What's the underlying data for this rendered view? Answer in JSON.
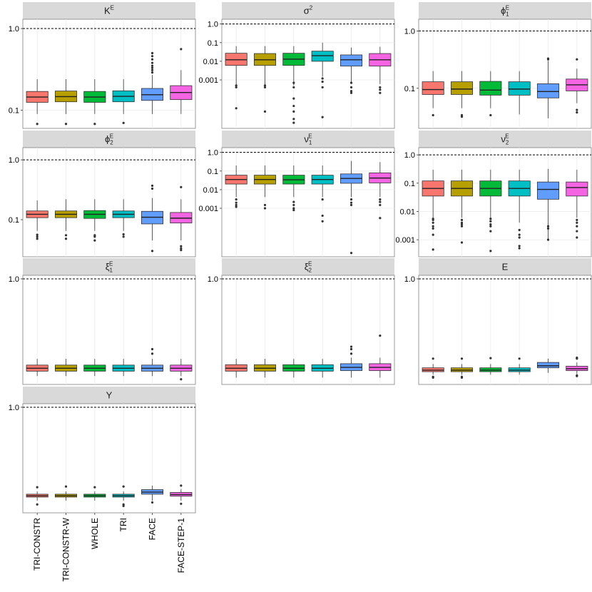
{
  "chart_data": {
    "type": "box",
    "yscale": "log10",
    "categories": [
      "TRI-CONSTR",
      "TRI-CONSTR-W",
      "WHOLE",
      "TRI",
      "FACE",
      "FACE-STEP-1"
    ],
    "colors": [
      "#F8766D",
      "#B79F00",
      "#00BA38",
      "#00BFC4",
      "#619CFF",
      "#F564E3"
    ],
    "reference_line": 1.0,
    "panels": [
      {
        "title": "K",
        "title_sup": "E",
        "title_sub": "",
        "ylim": [
          0.06,
          1.3
        ],
        "yticks": [
          1.0,
          0.1
        ],
        "ytick_labels": [
          "1.0",
          "0.1"
        ],
        "boxes": [
          {
            "min": 0.09,
            "q1": 0.125,
            "median": 0.145,
            "q3": 0.17,
            "max": 0.24,
            "outliers": [
              0.068
            ]
          },
          {
            "min": 0.09,
            "q1": 0.127,
            "median": 0.147,
            "q3": 0.172,
            "max": 0.24,
            "outliers": [
              0.068
            ]
          },
          {
            "min": 0.09,
            "q1": 0.125,
            "median": 0.145,
            "q3": 0.17,
            "max": 0.24,
            "outliers": [
              0.068
            ]
          },
          {
            "min": 0.09,
            "q1": 0.127,
            "median": 0.148,
            "q3": 0.173,
            "max": 0.24,
            "outliers": [
              0.07
            ]
          },
          {
            "min": 0.09,
            "q1": 0.132,
            "median": 0.155,
            "q3": 0.185,
            "max": 0.27,
            "outliers": [
              0.29,
              0.31,
              0.33,
              0.35,
              0.38,
              0.42,
              0.46,
              0.5
            ]
          },
          {
            "min": 0.09,
            "q1": 0.135,
            "median": 0.165,
            "q3": 0.2,
            "max": 0.31,
            "outliers": [
              0.56
            ]
          }
        ]
      },
      {
        "title": "σ",
        "title_sup": "2",
        "title_sub": "",
        "ylim": [
          2.5e-06,
          1.8
        ],
        "yticks": [
          1.0,
          0.1,
          0.01,
          0.001
        ],
        "ytick_labels": [
          "1.0",
          "0.1",
          "0.01",
          "0.001"
        ],
        "boxes": [
          {
            "min": 0.0005,
            "q1": 0.006,
            "median": 0.012,
            "q3": 0.027,
            "max": 0.065,
            "outliers": [
              0.0005,
              0.0004,
              3e-05
            ]
          },
          {
            "min": 0.0005,
            "q1": 0.006,
            "median": 0.012,
            "q3": 0.026,
            "max": 0.065,
            "outliers": [
              0.0005,
              0.0004,
              2e-05
            ]
          },
          {
            "min": 0.0005,
            "q1": 0.006,
            "median": 0.013,
            "q3": 0.027,
            "max": 0.065,
            "outliers": [
              0.0007,
              0.0004,
              0.0001,
              4e-05,
              2e-05,
              8e-06,
              5e-06
            ]
          },
          {
            "min": 0.0015,
            "q1": 0.01,
            "median": 0.02,
            "q3": 0.035,
            "max": 0.1,
            "outliers": [
              0.0012,
              0.0008,
              0.0004,
              1e-05
            ]
          },
          {
            "min": 0.0008,
            "q1": 0.0055,
            "median": 0.012,
            "q3": 0.022,
            "max": 0.055,
            "outliers": [
              0.0007,
              0.0004,
              0.00025,
              0.0002
            ]
          },
          {
            "min": 0.0006,
            "q1": 0.0055,
            "median": 0.012,
            "q3": 0.026,
            "max": 0.06,
            "outliers": [
              0.0004,
              0.0003,
              0.0002
            ]
          }
        ]
      },
      {
        "title": "ϕ",
        "title_sup": "E",
        "title_sub": "1",
        "ylim": [
          0.02,
          1.6
        ],
        "yticks": [
          1.0,
          0.1
        ],
        "ytick_labels": [
          "1.0",
          "0.1"
        ],
        "boxes": [
          {
            "min": 0.045,
            "q1": 0.078,
            "median": 0.095,
            "q3": 0.13,
            "max": 0.2,
            "outliers": [
              0.034
            ]
          },
          {
            "min": 0.045,
            "q1": 0.078,
            "median": 0.097,
            "q3": 0.13,
            "max": 0.2,
            "outliers": [
              0.034,
              0.032
            ]
          },
          {
            "min": 0.045,
            "q1": 0.076,
            "median": 0.093,
            "q3": 0.132,
            "max": 0.2,
            "outliers": [
              0.034
            ]
          },
          {
            "min": 0.035,
            "q1": 0.076,
            "median": 0.097,
            "q3": 0.13,
            "max": 0.2,
            "outliers": []
          },
          {
            "min": 0.03,
            "q1": 0.068,
            "median": 0.088,
            "q3": 0.12,
            "max": 0.3,
            "outliers": [
              0.32,
              0.33
            ]
          },
          {
            "min": 0.055,
            "q1": 0.09,
            "median": 0.115,
            "q3": 0.145,
            "max": 0.22,
            "outliers": [
              0.042,
              0.038,
              0.32
            ]
          }
        ]
      },
      {
        "title": "ϕ",
        "title_sup": "E",
        "title_sub": "2",
        "ylim": [
          0.024,
          1.6
        ],
        "yticks": [
          1.0,
          0.1
        ],
        "ytick_labels": [
          "1.0",
          "0.1"
        ],
        "boxes": [
          {
            "min": 0.065,
            "q1": 0.108,
            "median": 0.123,
            "q3": 0.14,
            "max": 0.21,
            "outliers": [
              0.056,
              0.052,
              0.048
            ]
          },
          {
            "min": 0.065,
            "q1": 0.108,
            "median": 0.123,
            "q3": 0.14,
            "max": 0.22,
            "outliers": [
              0.055,
              0.048
            ]
          },
          {
            "min": 0.065,
            "q1": 0.105,
            "median": 0.123,
            "q3": 0.142,
            "max": 0.22,
            "outliers": [
              0.055,
              0.052,
              0.045
            ]
          },
          {
            "min": 0.065,
            "q1": 0.108,
            "median": 0.123,
            "q3": 0.14,
            "max": 0.22,
            "outliers": [
              0.057,
              0.052
            ]
          },
          {
            "min": 0.045,
            "q1": 0.085,
            "median": 0.11,
            "q3": 0.138,
            "max": 0.23,
            "outliers": [
              0.03,
              0.33,
              0.37
            ]
          },
          {
            "min": 0.045,
            "q1": 0.088,
            "median": 0.106,
            "q3": 0.132,
            "max": 0.22,
            "outliers": [
              0.036,
              0.033,
              0.031,
              0.35
            ]
          }
        ]
      },
      {
        "title": "ν",
        "title_sup": "E",
        "title_sub": "1",
        "ylim": [
          2.5e-06,
          1.8
        ],
        "yticks": [
          1.0,
          0.1,
          0.01,
          0.001
        ],
        "ytick_labels": [
          "1.0",
          "0.1",
          "0.01",
          "0.001"
        ],
        "boxes": [
          {
            "min": 0.004,
            "q1": 0.02,
            "median": 0.035,
            "q3": 0.06,
            "max": 0.2,
            "outliers": [
              0.003,
              0.002,
              0.0015,
              0.0012
            ]
          },
          {
            "min": 0.004,
            "q1": 0.02,
            "median": 0.035,
            "q3": 0.06,
            "max": 0.2,
            "outliers": [
              0.0015,
              0.001
            ]
          },
          {
            "min": 0.004,
            "q1": 0.02,
            "median": 0.034,
            "q3": 0.06,
            "max": 0.2,
            "outliers": [
              0.0022,
              0.0015,
              0.001,
              0.0008
            ]
          },
          {
            "min": 0.004,
            "q1": 0.02,
            "median": 0.035,
            "q3": 0.06,
            "max": 0.2,
            "outliers": [
              0.003,
              0.0004,
              0.0002
            ]
          },
          {
            "min": 0.004,
            "q1": 0.022,
            "median": 0.04,
            "q3": 0.07,
            "max": 0.35,
            "outliers": [
              0.003,
              0.002,
              0.0015,
              4e-06
            ]
          },
          {
            "min": 0.004,
            "q1": 0.023,
            "median": 0.042,
            "q3": 0.08,
            "max": 0.3,
            "outliers": [
              0.003,
              0.0022,
              0.0015,
              0.0003
            ]
          }
        ]
      },
      {
        "title": "ν",
        "title_sup": "E",
        "title_sub": "2",
        "ylim": [
          0.00025,
          1.8
        ],
        "yticks": [
          1.0,
          0.1,
          0.01,
          0.001
        ],
        "ytick_labels": [
          "1.0",
          "0.1",
          "0.01",
          "0.001"
        ],
        "boxes": [
          {
            "min": 0.006,
            "q1": 0.035,
            "median": 0.065,
            "q3": 0.12,
            "max": 0.3,
            "outliers": [
              0.0055,
              0.005,
              0.004,
              0.003,
              0.0025,
              0.0015,
              0.00045
            ]
          },
          {
            "min": 0.006,
            "q1": 0.035,
            "median": 0.065,
            "q3": 0.12,
            "max": 0.3,
            "outliers": [
              0.005,
              0.004,
              0.0035,
              0.003,
              0.0008
            ]
          },
          {
            "min": 0.006,
            "q1": 0.035,
            "median": 0.065,
            "q3": 0.12,
            "max": 0.3,
            "outliers": [
              0.0055,
              0.0045,
              0.0035,
              0.003,
              0.002,
              0.0004
            ]
          },
          {
            "min": 0.004,
            "q1": 0.035,
            "median": 0.065,
            "q3": 0.12,
            "max": 0.3,
            "outliers": [
              0.0022,
              0.0015,
              0.0012,
              0.0006,
              0.0005
            ]
          },
          {
            "min": 0.001,
            "q1": 0.027,
            "median": 0.06,
            "q3": 0.11,
            "max": 0.32,
            "outliers": [
              0.003,
              0.0025,
              0.001
            ]
          },
          {
            "min": 0.006,
            "q1": 0.035,
            "median": 0.07,
            "q3": 0.11,
            "max": 0.3,
            "outliers": [
              0.005,
              0.004,
              0.003,
              0.002,
              0.0012
            ]
          }
        ]
      },
      {
        "title": "ξ",
        "title_sup": "E",
        "title_sub": "1",
        "ylim": [
          0.0013,
          1.25
        ],
        "yticks": [
          1.0
        ],
        "ytick_labels": [
          "1.0"
        ],
        "boxes": [
          {
            "min": 0.0022,
            "q1": 0.003,
            "median": 0.0036,
            "q3": 0.0044,
            "max": 0.0065,
            "outliers": []
          },
          {
            "min": 0.0022,
            "q1": 0.003,
            "median": 0.0036,
            "q3": 0.0044,
            "max": 0.0065,
            "outliers": []
          },
          {
            "min": 0.0022,
            "q1": 0.003,
            "median": 0.0036,
            "q3": 0.0044,
            "max": 0.0065,
            "outliers": []
          },
          {
            "min": 0.0022,
            "q1": 0.003,
            "median": 0.0036,
            "q3": 0.0044,
            "max": 0.0065,
            "outliers": []
          },
          {
            "min": 0.0022,
            "q1": 0.003,
            "median": 0.0036,
            "q3": 0.0044,
            "max": 0.0065,
            "outliers": [
              0.009,
              0.012
            ]
          },
          {
            "min": 0.0022,
            "q1": 0.003,
            "median": 0.0036,
            "q3": 0.0044,
            "max": 0.0065,
            "outliers": [
              0.0018
            ]
          }
        ]
      },
      {
        "title": "ξ",
        "title_sup": "E",
        "title_sub": "2",
        "ylim": [
          0.0013,
          1.25
        ],
        "yticks": [
          1.0
        ],
        "ytick_labels": [
          "1.0"
        ],
        "boxes": [
          {
            "min": 0.002,
            "q1": 0.003,
            "median": 0.0036,
            "q3": 0.0045,
            "max": 0.0065,
            "outliers": []
          },
          {
            "min": 0.002,
            "q1": 0.003,
            "median": 0.0036,
            "q3": 0.0045,
            "max": 0.0065,
            "outliers": []
          },
          {
            "min": 0.002,
            "q1": 0.003,
            "median": 0.0036,
            "q3": 0.0045,
            "max": 0.0065,
            "outliers": []
          },
          {
            "min": 0.002,
            "q1": 0.003,
            "median": 0.0036,
            "q3": 0.0045,
            "max": 0.0065,
            "outliers": []
          },
          {
            "min": 0.002,
            "q1": 0.0031,
            "median": 0.0038,
            "q3": 0.0048,
            "max": 0.007,
            "outliers": [
              0.009,
              0.012,
              0.014
            ]
          },
          {
            "min": 0.002,
            "q1": 0.0031,
            "median": 0.0038,
            "q3": 0.0048,
            "max": 0.007,
            "outliers": [
              0.028
            ]
          }
        ]
      },
      {
        "title": "E",
        "title_sup": "",
        "title_sub": "",
        "ylim": [
          0.0013,
          1.25
        ],
        "yticks": [
          1.0
        ],
        "ytick_labels": [
          "1.0"
        ],
        "boxes": [
          {
            "min": 0.0024,
            "q1": 0.0029,
            "median": 0.0032,
            "q3": 0.0037,
            "max": 0.0047,
            "outliers": [
              0.0021,
              0.002,
              0.0066
            ]
          },
          {
            "min": 0.0024,
            "q1": 0.0029,
            "median": 0.0032,
            "q3": 0.0037,
            "max": 0.0047,
            "outliers": [
              0.0021,
              0.002,
              0.0066
            ]
          },
          {
            "min": 0.0024,
            "q1": 0.0029,
            "median": 0.0032,
            "q3": 0.0037,
            "max": 0.0047,
            "outliers": [
              0.0068
            ]
          },
          {
            "min": 0.0024,
            "q1": 0.0029,
            "median": 0.0032,
            "q3": 0.0037,
            "max": 0.0047,
            "outliers": [
              0.0066
            ]
          },
          {
            "min": 0.0027,
            "q1": 0.0037,
            "median": 0.0042,
            "q3": 0.0052,
            "max": 0.0066,
            "outliers": []
          },
          {
            "min": 0.0025,
            "q1": 0.0031,
            "median": 0.0035,
            "q3": 0.0041,
            "max": 0.0052,
            "outliers": [
              0.0023,
              0.0022,
              0.0066,
              0.007
            ]
          }
        ]
      },
      {
        "title": "Y",
        "title_sup": "",
        "title_sub": "",
        "ylim": [
          0.0013,
          1.25
        ],
        "yticks": [
          1.0
        ],
        "ytick_labels": [
          "1.0"
        ],
        "boxes": [
          {
            "min": 0.0028,
            "q1": 0.0035,
            "median": 0.0038,
            "q3": 0.0042,
            "max": 0.005,
            "outliers": [
              0.0022,
              0.0065
            ]
          },
          {
            "min": 0.0028,
            "q1": 0.0035,
            "median": 0.0038,
            "q3": 0.0042,
            "max": 0.005,
            "outliers": [
              0.0068
            ]
          },
          {
            "min": 0.0028,
            "q1": 0.0035,
            "median": 0.0038,
            "q3": 0.0042,
            "max": 0.005,
            "outliers": [
              0.0065
            ]
          },
          {
            "min": 0.0028,
            "q1": 0.0035,
            "median": 0.0038,
            "q3": 0.0042,
            "max": 0.005,
            "outliers": [
              0.0022,
              0.002,
              0.0068
            ]
          },
          {
            "min": 0.0028,
            "q1": 0.0042,
            "median": 0.0048,
            "q3": 0.0056,
            "max": 0.0072,
            "outliers": [
              0.0025
            ]
          },
          {
            "min": 0.0028,
            "q1": 0.0037,
            "median": 0.0041,
            "q3": 0.0047,
            "max": 0.0058,
            "outliers": [
              0.0023,
              0.0072
            ]
          }
        ]
      }
    ]
  }
}
